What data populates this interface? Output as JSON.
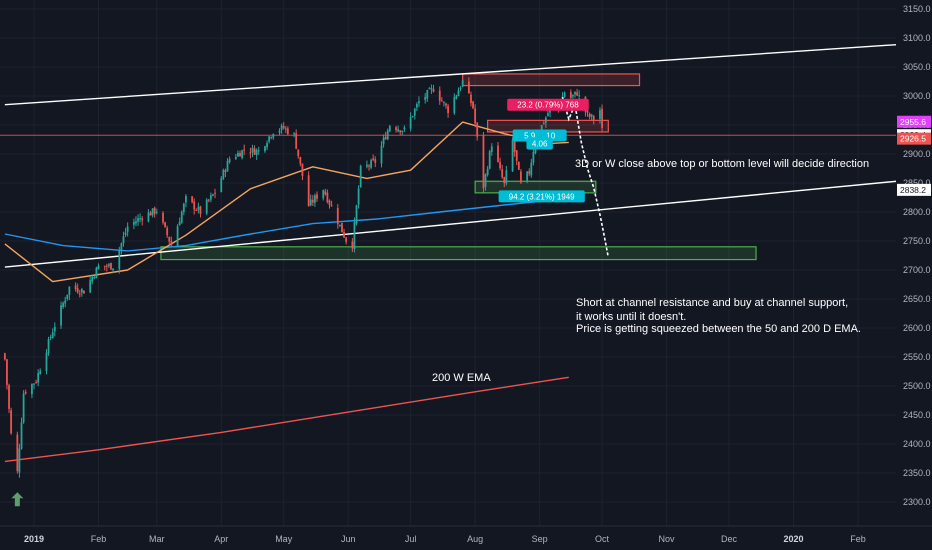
{
  "chart_data": {
    "type": "candlestick",
    "y_axis": {
      "min": 2275,
      "max": 3175,
      "ticks": [
        2300,
        2350,
        2400,
        2450,
        2500,
        2550,
        2600,
        2650,
        2700,
        2750,
        2800,
        2850,
        2900,
        2950,
        3000,
        3050,
        3100,
        3150
      ],
      "tick_labels": [
        "2300.0",
        "2350.0",
        "2400.0",
        "2450.0",
        "2500.0",
        "2550.0",
        "2600.0",
        "2650.0",
        "2700.0",
        "2750.0",
        "2800.0",
        "2850.0",
        "2900.0",
        "2950.0",
        "3000.0",
        "3050.0",
        "3100.0",
        "3150.0"
      ]
    },
    "x_axis": {
      "start": "2018-12-18",
      "end": "2020-03-05",
      "ticks": [
        {
          "date": "2019-01-01",
          "label": "2019",
          "bold": true
        },
        {
          "date": "2019-02-01",
          "label": "Feb"
        },
        {
          "date": "2019-03-01",
          "label": "Mar"
        },
        {
          "date": "2019-04-01",
          "label": "Apr"
        },
        {
          "date": "2019-05-01",
          "label": "May"
        },
        {
          "date": "2019-06-01",
          "label": "Jun"
        },
        {
          "date": "2019-07-01",
          "label": "Jul"
        },
        {
          "date": "2019-08-01",
          "label": "Aug"
        },
        {
          "date": "2019-09-01",
          "label": "Sep"
        },
        {
          "date": "2019-10-01",
          "label": "Oct"
        },
        {
          "date": "2019-11-01",
          "label": "Nov"
        },
        {
          "date": "2019-12-01",
          "label": "Dec"
        },
        {
          "date": "2020-01-01",
          "label": "2020",
          "bold": true
        },
        {
          "date": "2020-02-01",
          "label": "Feb"
        }
      ]
    },
    "price_path": [
      [
        "2018-12-18",
        2546
      ],
      [
        "2018-12-21",
        2416
      ],
      [
        "2018-12-24",
        2351
      ],
      [
        "2018-12-27",
        2488
      ],
      [
        "2019-01-02",
        2510
      ],
      [
        "2019-01-10",
        2596
      ],
      [
        "2019-01-18",
        2670
      ],
      [
        "2019-01-25",
        2664
      ],
      [
        "2019-02-01",
        2706
      ],
      [
        "2019-02-08",
        2707
      ],
      [
        "2019-02-15",
        2775
      ],
      [
        "2019-02-22",
        2792
      ],
      [
        "2019-03-01",
        2803
      ],
      [
        "2019-03-08",
        2743
      ],
      [
        "2019-03-15",
        2822
      ],
      [
        "2019-03-22",
        2800
      ],
      [
        "2019-03-29",
        2834
      ],
      [
        "2019-04-05",
        2892
      ],
      [
        "2019-04-12",
        2907
      ],
      [
        "2019-04-19",
        2905
      ],
      [
        "2019-04-26",
        2940
      ],
      [
        "2019-05-01",
        2945
      ],
      [
        "2019-05-06",
        2932
      ],
      [
        "2019-05-13",
        2811
      ],
      [
        "2019-05-20",
        2840
      ],
      [
        "2019-05-31",
        2752
      ],
      [
        "2019-06-03",
        2744
      ],
      [
        "2019-06-07",
        2873
      ],
      [
        "2019-06-14",
        2887
      ],
      [
        "2019-06-21",
        2950
      ],
      [
        "2019-06-28",
        2941
      ],
      [
        "2019-07-05",
        2990
      ],
      [
        "2019-07-12",
        3013
      ],
      [
        "2019-07-19",
        2976
      ],
      [
        "2019-07-26",
        3025
      ],
      [
        "2019-07-31",
        2980
      ],
      [
        "2019-08-05",
        2844
      ],
      [
        "2019-08-09",
        2918
      ],
      [
        "2019-08-15",
        2847
      ],
      [
        "2019-08-19",
        2923
      ],
      [
        "2019-08-23",
        2847
      ],
      [
        "2019-08-27",
        2869
      ],
      [
        "2019-08-30",
        2926
      ],
      [
        "2019-09-06",
        2978
      ],
      [
        "2019-09-10",
        2979
      ],
      [
        "2019-09-13",
        3007
      ],
      [
        "2019-09-16",
        2997
      ],
      [
        "2019-09-19",
        3006
      ],
      [
        "2019-09-24",
        2966
      ],
      [
        "2019-09-27",
        2961
      ],
      [
        "2019-09-30",
        2976
      ],
      [
        "2019-10-01",
        2940
      ]
    ],
    "projection_path": [
      [
        "2019-09-12",
        2998
      ],
      [
        "2019-09-15",
        2960
      ],
      [
        "2019-09-18",
        2985
      ],
      [
        "2019-09-21",
        2920
      ],
      [
        "2019-09-24",
        2875
      ],
      [
        "2019-09-27",
        2842
      ],
      [
        "2019-09-30",
        2795
      ],
      [
        "2019-10-02",
        2760
      ],
      [
        "2019-10-04",
        2722
      ]
    ],
    "ema_50_daily": [
      [
        "2018-12-18",
        2745
      ],
      [
        "2019-01-10",
        2680
      ],
      [
        "2019-02-15",
        2700
      ],
      [
        "2019-03-15",
        2760
      ],
      [
        "2019-04-15",
        2840
      ],
      [
        "2019-05-15",
        2878
      ],
      [
        "2019-06-10",
        2858
      ],
      [
        "2019-07-01",
        2872
      ],
      [
        "2019-07-26",
        2955
      ],
      [
        "2019-08-15",
        2935
      ],
      [
        "2019-09-05",
        2918
      ],
      [
        "2019-09-15",
        2920
      ]
    ],
    "ema_200_daily": [
      [
        "2018-12-18",
        2762
      ],
      [
        "2019-01-15",
        2742
      ],
      [
        "2019-02-15",
        2733
      ],
      [
        "2019-03-15",
        2742
      ],
      [
        "2019-04-15",
        2762
      ],
      [
        "2019-05-15",
        2780
      ],
      [
        "2019-06-15",
        2788
      ],
      [
        "2019-07-15",
        2800
      ],
      [
        "2019-08-15",
        2812
      ],
      [
        "2019-09-05",
        2820
      ],
      [
        "2019-09-15",
        2825
      ]
    ],
    "ema_200_weekly": [
      [
        "2018-12-18",
        2370
      ],
      [
        "2019-02-01",
        2390
      ],
      [
        "2019-04-01",
        2420
      ],
      [
        "2019-06-01",
        2455
      ],
      [
        "2019-08-01",
        2490
      ],
      [
        "2019-09-15",
        2515
      ]
    ],
    "channel_upper": [
      [
        "2018-12-18",
        2985
      ],
      [
        "2020-03-05",
        3092
      ]
    ],
    "channel_lower": [
      [
        "2018-12-18",
        2705
      ],
      [
        "2020-03-05",
        2858
      ]
    ],
    "levels": [
      {
        "value": 2932.4,
        "color": "#ef5350"
      }
    ],
    "zones": [
      {
        "from": "2019-07-26",
        "to": "2019-10-19",
        "low": 3018,
        "high": 3038,
        "color": "#ef5350"
      },
      {
        "from": "2019-08-07",
        "to": "2019-10-04",
        "low": 2938,
        "high": 2958,
        "color": "#ef5350"
      },
      {
        "from": "2019-08-01",
        "to": "2019-09-28",
        "low": 2833,
        "high": 2853,
        "color": "#4caf50"
      },
      {
        "from": "2019-03-03",
        "to": "2019-12-14",
        "low": 2718,
        "high": 2740,
        "color": "#4caf50"
      }
    ],
    "measure_labels": [
      {
        "text": "23.2 (0.79%) 768",
        "date": "2019-09-05",
        "price": 2985,
        "color": "#e91e63"
      },
      {
        "text": "5.9 ... 10",
        "date": "2019-09-01",
        "price": 2932,
        "color": "#00bcd4"
      },
      {
        "text": "4.06",
        "date": "2019-09-01",
        "price": 2918,
        "color": "#00bcd4"
      },
      {
        "text": "94.2 (3.21%) 1949",
        "date": "2019-09-02",
        "price": 2827,
        "color": "#00bcd4"
      }
    ],
    "price_tags": [
      {
        "value": 2955.6,
        "label": "2955.6",
        "bg": "#e040fb",
        "fg": "#ffffff"
      },
      {
        "value": 2932.4,
        "label": "2932.4",
        "bg": "#ffffff",
        "fg": "#131722"
      },
      {
        "value": 2926.5,
        "label": "2926.5",
        "bg": "#ef5350",
        "fg": "#ffffff"
      },
      {
        "value": 2838.2,
        "label": "2838.2",
        "bg": "#ffffff",
        "fg": "#131722"
      }
    ],
    "annotations": {
      "ema_label": "200 W EMA",
      "direction_note": "3D or W close above top or bottom level will decide direction",
      "strategy_lines": [
        "Short at channel resistance and buy at channel support,",
        "it works until it doesn't.",
        "Price is getting squeezed between the 50 and 200 D EMA."
      ]
    },
    "arrow_date": "2018-12-24",
    "arrow_price": 2303,
    "colors": {
      "background": "#131722",
      "grid": "#1e2230",
      "up": "#26a69a",
      "down": "#ef5350",
      "ema50": "#f4a460",
      "ema200": "#2196f3",
      "ema200w": "#ef5350",
      "channel": "#ffffff",
      "arrow": "#5c9e6e"
    }
  }
}
